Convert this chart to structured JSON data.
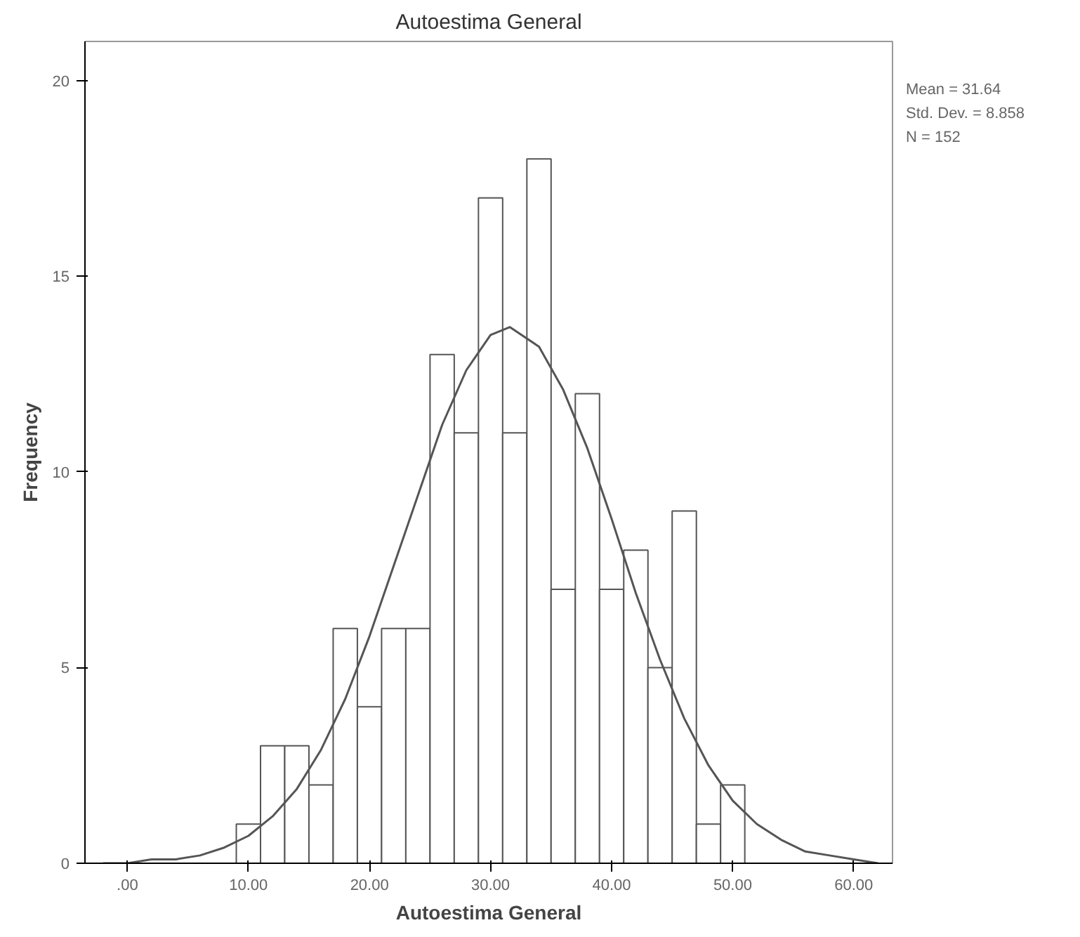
{
  "chart_data": {
    "type": "histogram",
    "title": "Autoestima General",
    "xlabel": "Autoestima General",
    "ylabel": "Frequency",
    "bins": [
      9,
      11,
      13,
      15,
      17,
      19,
      21,
      23,
      25,
      27,
      29,
      31,
      33,
      35,
      37,
      39,
      41,
      43,
      45,
      47,
      49,
      51
    ],
    "values": [
      1,
      3,
      3,
      2,
      6,
      4,
      6,
      6,
      13,
      11,
      17,
      11,
      18,
      7,
      12,
      7,
      8,
      5,
      9,
      1,
      2
    ],
    "color": "#ffffff",
    "series": [
      {
        "type": "line",
        "color": "#555555",
        "x": [
          -2,
          0,
          2,
          4,
          6,
          8,
          10,
          12,
          14,
          16,
          18,
          20,
          22,
          24,
          26,
          28,
          30,
          31.6,
          34,
          36,
          38,
          40,
          42,
          44,
          46,
          48,
          50,
          52,
          54,
          56,
          58,
          60,
          62
        ],
        "values": [
          0.0,
          0.0,
          0.1,
          0.1,
          0.2,
          0.4,
          0.7,
          1.2,
          1.9,
          2.9,
          4.2,
          5.8,
          7.6,
          9.4,
          11.2,
          12.6,
          13.5,
          13.7,
          13.2,
          12.1,
          10.6,
          8.8,
          6.9,
          5.2,
          3.7,
          2.5,
          1.6,
          1.0,
          0.6,
          0.3,
          0.2,
          0.1,
          0.0
        ]
      }
    ],
    "xlim": [
      -3.5,
      63.2
    ],
    "ylim": [
      0,
      21
    ],
    "xticks": [
      {
        "value": 0,
        "label": ".00"
      },
      {
        "value": 10,
        "label": "10.00"
      },
      {
        "value": 20,
        "label": "20.00"
      },
      {
        "value": 30,
        "label": "30.00"
      },
      {
        "value": 40,
        "label": "40.00"
      },
      {
        "value": 50,
        "label": "50.00"
      },
      {
        "value": 60,
        "label": "60.00"
      }
    ],
    "yticks": [
      0,
      5,
      10,
      15,
      20
    ],
    "annotations": [
      "Mean = 31.64",
      "Std. Dev. = 8.858",
      "N = 152"
    ]
  }
}
